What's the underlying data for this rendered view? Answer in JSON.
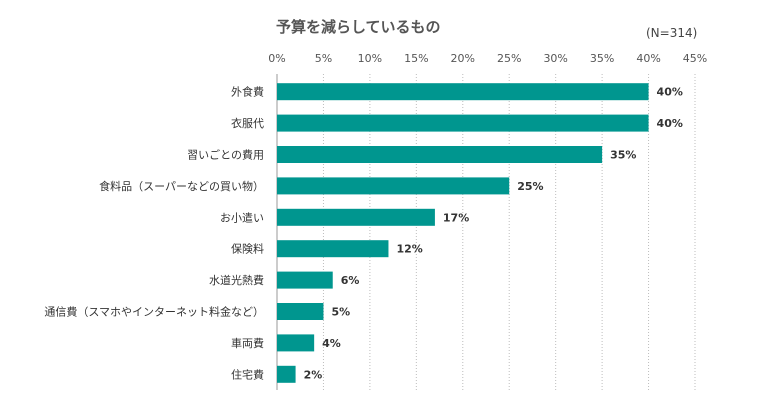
{
  "chart_data": {
    "type": "bar",
    "orientation": "horizontal",
    "title": "予算を減らしているもの",
    "note": "(N=314)",
    "categories": [
      "外食費",
      "衣服代",
      "習いごとの費用",
      "食料品（スーパーなどの買い物）",
      "お小遣い",
      "保険料",
      "水道光熱費",
      "通信費（スマホやインターネット料金など）",
      "車両費",
      "住宅費"
    ],
    "values": [
      40,
      40,
      35,
      25,
      17,
      12,
      6,
      5,
      4,
      2
    ],
    "value_labels": [
      "40%",
      "40%",
      "35%",
      "25%",
      "17%",
      "12%",
      "6%",
      "5%",
      "4%",
      "2%"
    ],
    "xlim": [
      0,
      45
    ],
    "xticks": [
      "0%",
      "5%",
      "10%",
      "15%",
      "20%",
      "25%",
      "30%",
      "35%",
      "40%",
      "45%"
    ],
    "grid": "vertical dotted",
    "bar_color": "#00968f"
  }
}
